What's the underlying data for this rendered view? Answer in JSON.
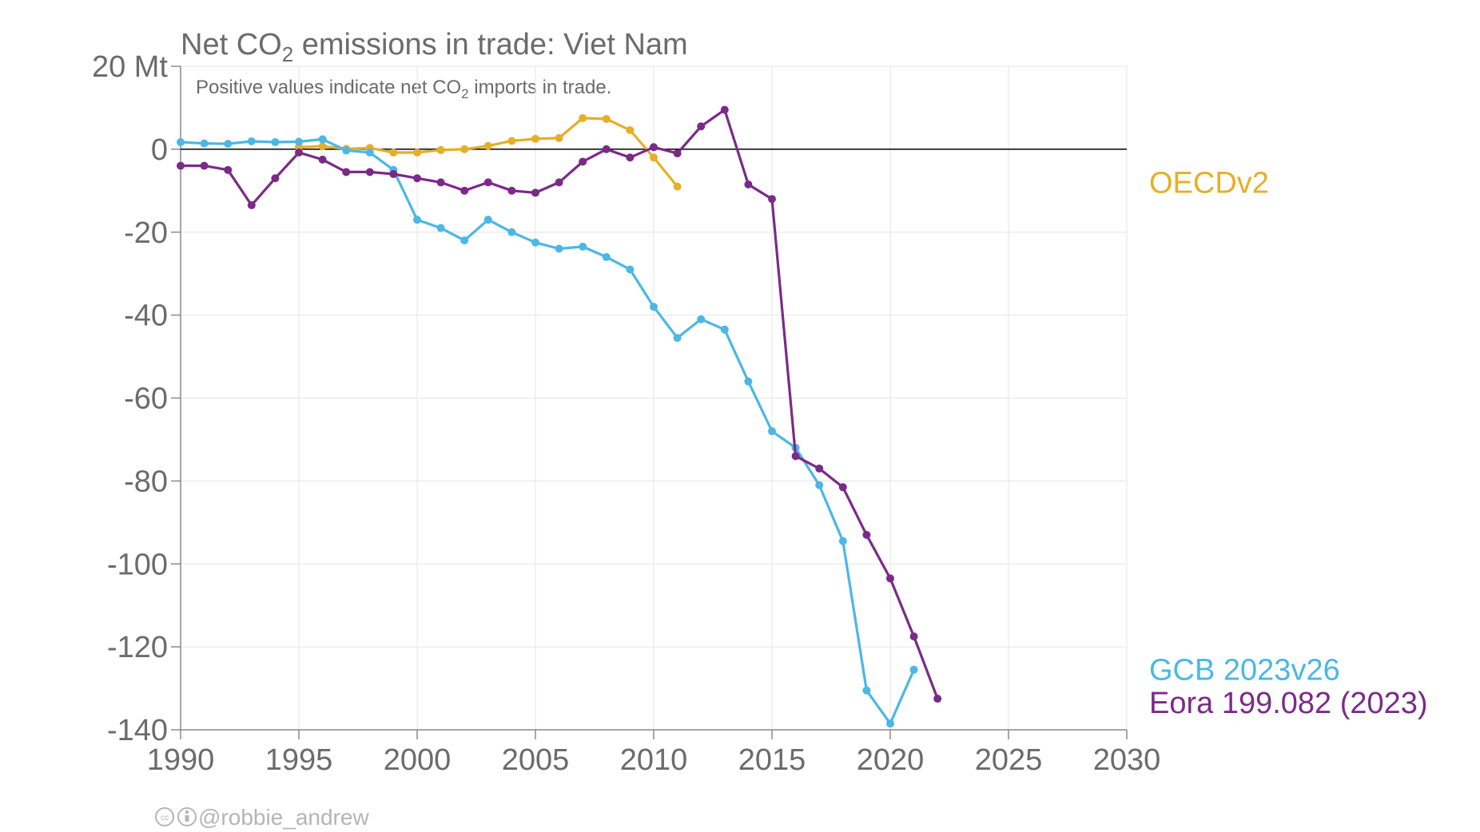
{
  "chart_data": {
    "type": "line",
    "title_prefix": "Net CO",
    "title_sub": "2",
    "title_suffix": " emissions in trade: Viet Nam",
    "subtitle_prefix": "Positive values indicate net CO",
    "subtitle_sub": "2",
    "subtitle_suffix": " imports in trade.",
    "y_unit": "Mt",
    "xlim": [
      1990,
      2030
    ],
    "ylim": [
      -140,
      20
    ],
    "x_ticks": [
      1990,
      1995,
      2000,
      2005,
      2010,
      2015,
      2020,
      2025,
      2030
    ],
    "y_ticks": [
      {
        "value": 20,
        "label": "20 Mt"
      },
      {
        "value": 0,
        "label": "0"
      },
      {
        "value": -20,
        "label": "-20"
      },
      {
        "value": -40,
        "label": "-40"
      },
      {
        "value": -60,
        "label": "-60"
      },
      {
        "value": -80,
        "label": "-80"
      },
      {
        "value": -100,
        "label": "-100"
      },
      {
        "value": -120,
        "label": "-120"
      },
      {
        "value": -140,
        "label": "-140"
      }
    ],
    "grid": true,
    "legend": "direct labels at right",
    "series": [
      {
        "name": "OECDv2",
        "color": "#E8AE27",
        "x": [
          1995,
          1996,
          1997,
          1998,
          1999,
          2000,
          2001,
          2002,
          2003,
          2004,
          2005,
          2006,
          2007,
          2008,
          2009,
          2010,
          2011
        ],
        "y": [
          0.5,
          0.7,
          0.1,
          0.3,
          -0.8,
          -0.8,
          -0.2,
          0.0,
          0.8,
          2.0,
          2.5,
          2.7,
          7.5,
          7.3,
          4.6,
          -2.0,
          -9.0
        ]
      },
      {
        "name": "GCB 2023v26",
        "color": "#4BB7E6",
        "x": [
          1990,
          1991,
          1992,
          1993,
          1994,
          1995,
          1996,
          1997,
          1998,
          1999,
          2000,
          2001,
          2002,
          2003,
          2004,
          2005,
          2006,
          2007,
          2008,
          2009,
          2010,
          2011,
          2012,
          2013,
          2014,
          2015,
          2016,
          2017,
          2018,
          2019,
          2020,
          2021
        ],
        "y": [
          1.7,
          1.4,
          1.3,
          1.9,
          1.7,
          1.8,
          2.4,
          -0.3,
          -0.8,
          -5.0,
          -17.0,
          -19.0,
          -22.0,
          -17.0,
          -20.0,
          -22.5,
          -24.0,
          -23.5,
          -26.0,
          -29.0,
          -38.0,
          -45.5,
          -41.0,
          -43.5,
          -56.0,
          -68.0,
          -72.0,
          -81.0,
          -94.5,
          -130.5,
          -138.5,
          -125.5
        ]
      },
      {
        "name": "Eora 199.082 (2023)",
        "color": "#7B2A88",
        "x": [
          1990,
          1991,
          1992,
          1993,
          1994,
          1995,
          1996,
          1997,
          1998,
          1999,
          2000,
          2001,
          2002,
          2003,
          2004,
          2005,
          2006,
          2007,
          2008,
          2009,
          2010,
          2011,
          2012,
          2013,
          2014,
          2015,
          2016,
          2017,
          2018,
          2019,
          2020,
          2021,
          2022
        ],
        "y": [
          -4.0,
          -4.0,
          -5.0,
          -13.5,
          -7.0,
          -0.8,
          -2.5,
          -5.5,
          -5.5,
          -6.0,
          -7.0,
          -8.0,
          -10.0,
          -8.0,
          -10.0,
          -10.5,
          -8.0,
          -3.0,
          0.0,
          -2.0,
          0.5,
          -1.0,
          5.5,
          9.5,
          -8.5,
          -12.0,
          -74.0,
          -77.0,
          -81.5,
          -93.0,
          -103.5,
          -117.5,
          -132.5
        ]
      }
    ],
    "series_label_values": {
      "OECDv2": -8,
      "GCB 2023v26": -125.5,
      "Eora 199.082 (2023)": -133.5
    },
    "credit_icons": [
      "cc-icon",
      "attribution-icon"
    ],
    "credit": "@robbie_andrew"
  }
}
